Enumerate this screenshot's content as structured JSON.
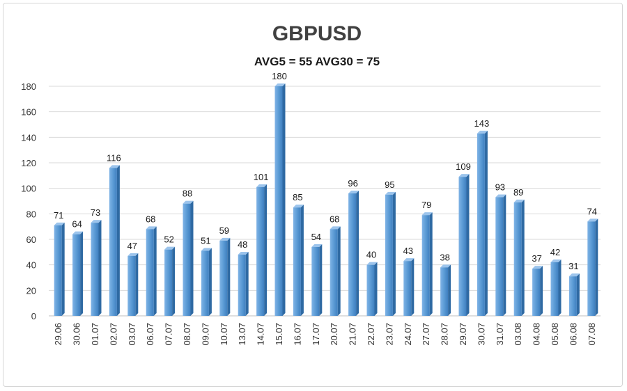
{
  "chart_data": {
    "type": "bar",
    "title": "GBPUSD",
    "subtitle": "AVG5 = 55 AVG30 = 75",
    "xlabel": "",
    "ylabel": "",
    "ylim": [
      0,
      180
    ],
    "yticks": [
      0,
      20,
      40,
      60,
      80,
      100,
      120,
      140,
      160,
      180
    ],
    "grid": true,
    "bar_color": "#5b9bd5",
    "categories": [
      "29.06",
      "30.06",
      "01.07",
      "02.07",
      "03.07",
      "06.07",
      "07.07",
      "08.07",
      "09.07",
      "10.07",
      "13.07",
      "14.07",
      "15.07",
      "16.07",
      "17.07",
      "20.07",
      "21.07",
      "22.07",
      "23.07",
      "24.07",
      "27.07",
      "28.07",
      "29.07",
      "30.07",
      "31.07",
      "03.08",
      "04.08",
      "05.08",
      "06.08",
      "07.08"
    ],
    "values": [
      71,
      64,
      73,
      116,
      47,
      68,
      52,
      88,
      51,
      59,
      48,
      101,
      180,
      85,
      54,
      68,
      96,
      40,
      95,
      43,
      79,
      38,
      109,
      143,
      93,
      89,
      37,
      42,
      31,
      74
    ]
  }
}
